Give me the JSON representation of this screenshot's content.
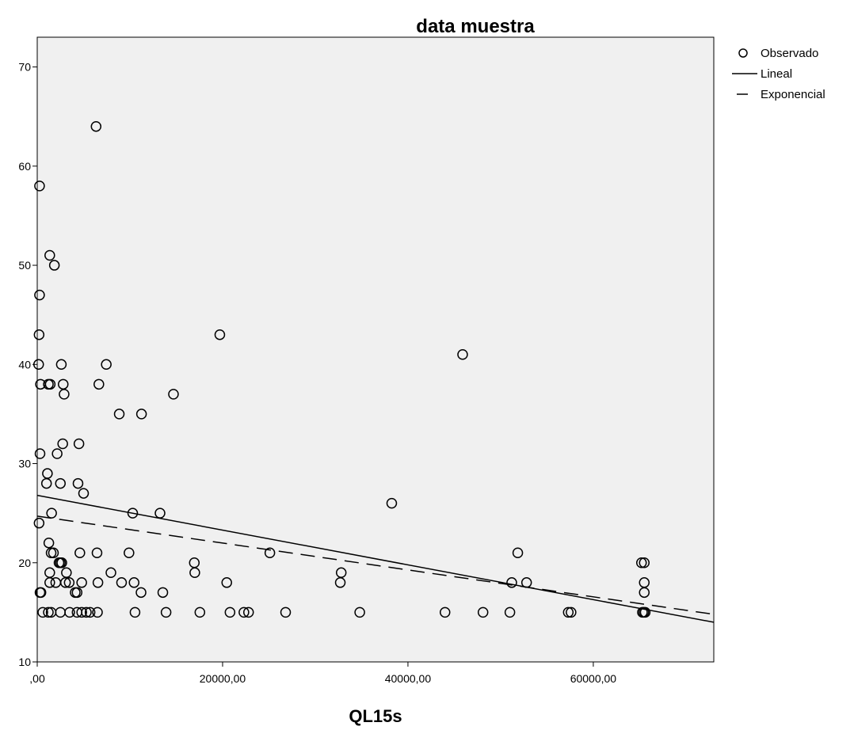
{
  "chart_data": {
    "type": "scatter",
    "title": "data muestra",
    "xlabel": "QL15s",
    "ylabel": "",
    "xlim": [
      0,
      73000
    ],
    "ylim": [
      10,
      73
    ],
    "grid": false,
    "legend_position": "top-right",
    "x_ticks": [
      0,
      20000,
      40000,
      60000
    ],
    "x_tick_labels": [
      ",00",
      "20000,00",
      "40000,00",
      "60000,00"
    ],
    "y_ticks": [
      10,
      20,
      30,
      40,
      50,
      60,
      70
    ],
    "y_tick_labels": [
      "10",
      "20",
      "30",
      "40",
      "50",
      "60",
      "70"
    ],
    "legend": [
      {
        "label": "Observado",
        "symbol": "circle"
      },
      {
        "label": "Lineal",
        "symbol": "solid-line"
      },
      {
        "label": "Exponencial",
        "symbol": "dashed-line"
      }
    ],
    "series": [
      {
        "name": "Observado",
        "kind": "points",
        "points": [
          [
            6350,
            64
          ],
          [
            250,
            58
          ],
          [
            1350,
            51
          ],
          [
            1850,
            50
          ],
          [
            250,
            47
          ],
          [
            200,
            43
          ],
          [
            19700,
            43
          ],
          [
            45900,
            41
          ],
          [
            150,
            40
          ],
          [
            2600,
            40
          ],
          [
            7450,
            40
          ],
          [
            350,
            38
          ],
          [
            1200,
            38
          ],
          [
            1400,
            38
          ],
          [
            2800,
            38
          ],
          [
            6650,
            38
          ],
          [
            2900,
            37
          ],
          [
            14700,
            37
          ],
          [
            8850,
            35
          ],
          [
            11250,
            35
          ],
          [
            2750,
            32
          ],
          [
            4500,
            32
          ],
          [
            300,
            31
          ],
          [
            2150,
            31
          ],
          [
            1100,
            29
          ],
          [
            1000,
            28
          ],
          [
            2500,
            28
          ],
          [
            4400,
            28
          ],
          [
            5000,
            27
          ],
          [
            38250,
            26
          ],
          [
            1550,
            25
          ],
          [
            10300,
            25
          ],
          [
            13250,
            25
          ],
          [
            200,
            24
          ],
          [
            1250,
            22
          ],
          [
            1500,
            21
          ],
          [
            1750,
            21
          ],
          [
            4600,
            21
          ],
          [
            6450,
            21
          ],
          [
            9900,
            21
          ],
          [
            25100,
            21
          ],
          [
            51850,
            21
          ],
          [
            2350,
            20
          ],
          [
            2500,
            20
          ],
          [
            2650,
            20
          ],
          [
            16950,
            20
          ],
          [
            65200,
            20
          ],
          [
            65500,
            20
          ],
          [
            1350,
            19
          ],
          [
            3150,
            19
          ],
          [
            7950,
            19
          ],
          [
            17000,
            19
          ],
          [
            32800,
            19
          ],
          [
            1350,
            18
          ],
          [
            2000,
            18
          ],
          [
            3050,
            18
          ],
          [
            3450,
            18
          ],
          [
            4800,
            18
          ],
          [
            6550,
            18
          ],
          [
            9100,
            18
          ],
          [
            10450,
            18
          ],
          [
            20450,
            18
          ],
          [
            32700,
            18
          ],
          [
            51200,
            18
          ],
          [
            52800,
            18
          ],
          [
            65500,
            18
          ],
          [
            300,
            17
          ],
          [
            400,
            17
          ],
          [
            4100,
            17
          ],
          [
            4300,
            17
          ],
          [
            11200,
            17
          ],
          [
            13550,
            17
          ],
          [
            65500,
            17
          ],
          [
            600,
            15
          ],
          [
            1200,
            15
          ],
          [
            1500,
            15
          ],
          [
            2500,
            15
          ],
          [
            3500,
            15
          ],
          [
            4300,
            15
          ],
          [
            4800,
            15
          ],
          [
            5300,
            15
          ],
          [
            5700,
            15
          ],
          [
            6500,
            15
          ],
          [
            10550,
            15
          ],
          [
            13900,
            15
          ],
          [
            17550,
            15
          ],
          [
            20800,
            15
          ],
          [
            22300,
            15
          ],
          [
            22800,
            15
          ],
          [
            26800,
            15
          ],
          [
            34800,
            15
          ],
          [
            44000,
            15
          ],
          [
            48100,
            15
          ],
          [
            51000,
            15
          ],
          [
            57300,
            15
          ],
          [
            57600,
            15
          ],
          [
            65300,
            15
          ],
          [
            65450,
            15
          ],
          [
            65600,
            15
          ]
        ]
      },
      {
        "name": "Lineal",
        "kind": "line",
        "style": "solid",
        "x": [
          0,
          73000
        ],
        "y": [
          26.8,
          14.0
        ]
      },
      {
        "name": "Exponencial",
        "kind": "line",
        "style": "dashed",
        "x": [
          0,
          73000
        ],
        "y": [
          24.7,
          14.8
        ]
      }
    ],
    "colors": {
      "plot_background": "#f0f0f0",
      "axis": "#000000",
      "marker_stroke": "#000000"
    }
  }
}
